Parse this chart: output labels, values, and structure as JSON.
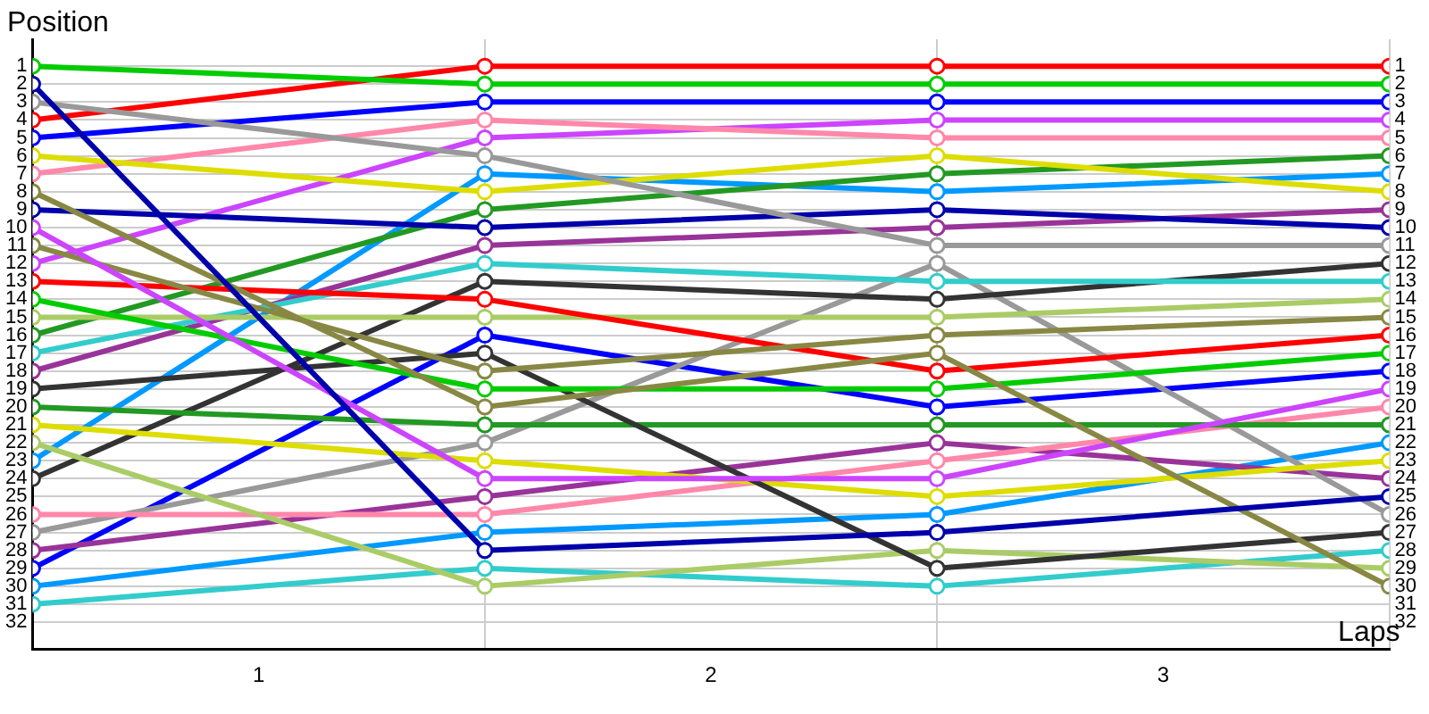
{
  "chart_data": {
    "type": "line",
    "xlabel": "Laps",
    "ylabel": "Position",
    "x": [
      0,
      1,
      2,
      3
    ],
    "xlim": [
      0,
      3
    ],
    "xticks": [
      {
        "value": 0,
        "label": null
      },
      {
        "value": 0.5,
        "label": "1"
      },
      {
        "value": 1,
        "label": null
      },
      {
        "value": 1.5,
        "label": "2"
      },
      {
        "value": 2,
        "label": null
      },
      {
        "value": 2.5,
        "label": "3"
      },
      {
        "value": 3,
        "label": null
      }
    ],
    "ylim": [
      33.5,
      -0.5
    ],
    "yticks": [
      1,
      2,
      3,
      4,
      5,
      6,
      7,
      8,
      9,
      10,
      11,
      12,
      13,
      14,
      15,
      16,
      17,
      18,
      19,
      20,
      21,
      22,
      23,
      24,
      25,
      26,
      27,
      28,
      29,
      30,
      31,
      32
    ],
    "y2lim": [
      33.5,
      -0.5
    ],
    "y2ticks": [
      1,
      2,
      3,
      4,
      5,
      6,
      7,
      8,
      9,
      10,
      11,
      12,
      13,
      14,
      15,
      16,
      17,
      18,
      19,
      20,
      21,
      22,
      23,
      24,
      25,
      26,
      27,
      28,
      29,
      30,
      31,
      32
    ],
    "grid": true,
    "legend": false,
    "marker": "circle",
    "line_style": "solid",
    "series": [
      {
        "color": "#00cc00",
        "values": [
          1,
          2,
          2,
          2
        ]
      },
      {
        "color": "#0000aa",
        "values": [
          2,
          28,
          27,
          25
        ]
      },
      {
        "color": "#999999",
        "values": [
          3,
          6,
          11,
          11
        ]
      },
      {
        "color": "#ff0000",
        "values": [
          4,
          1,
          1,
          1
        ]
      },
      {
        "color": "#0000ff",
        "values": [
          5,
          3,
          3,
          3
        ]
      },
      {
        "color": "#dddd00",
        "values": [
          6,
          8,
          6,
          8
        ]
      },
      {
        "color": "#ff88aa",
        "values": [
          7,
          4,
          5,
          5
        ]
      },
      {
        "color": "#888844",
        "values": [
          8,
          20,
          17,
          30
        ]
      },
      {
        "color": "#0000aa",
        "values": [
          9,
          10,
          9,
          10
        ]
      },
      {
        "color": "#cc44ff",
        "values": [
          10,
          24,
          24,
          19
        ]
      },
      {
        "color": "#888844",
        "values": [
          11,
          18,
          16,
          15
        ]
      },
      {
        "color": "#cc44ff",
        "values": [
          12,
          5,
          4,
          4
        ]
      },
      {
        "color": "#ff0000",
        "values": [
          13,
          14,
          18,
          16
        ]
      },
      {
        "color": "#00cc00",
        "values": [
          14,
          19,
          19,
          17
        ]
      },
      {
        "color": "#aacc66",
        "values": [
          15,
          15,
          15,
          14
        ]
      },
      {
        "color": "#229922",
        "values": [
          16,
          9,
          7,
          6
        ]
      },
      {
        "color": "#33cccc",
        "values": [
          17,
          12,
          13,
          13
        ]
      },
      {
        "color": "#993399",
        "values": [
          18,
          11,
          10,
          9
        ]
      },
      {
        "color": "#333333",
        "values": [
          19,
          17,
          29,
          27
        ]
      },
      {
        "color": "#229922",
        "values": [
          20,
          21,
          21,
          21
        ]
      },
      {
        "color": "#dddd00",
        "values": [
          21,
          23,
          25,
          23
        ]
      },
      {
        "color": "#aacc66",
        "values": [
          22,
          30,
          28,
          29
        ]
      },
      {
        "color": "#0099ff",
        "values": [
          23,
          7,
          8,
          7
        ]
      },
      {
        "color": "#333333",
        "values": [
          24,
          13,
          14,
          12
        ]
      },
      {
        "color": "#ff88aa",
        "values": [
          26,
          26,
          23,
          20
        ]
      },
      {
        "color": "#999999",
        "values": [
          27,
          22,
          12,
          26
        ]
      },
      {
        "color": "#993399",
        "values": [
          28,
          25,
          22,
          24
        ]
      },
      {
        "color": "#0000ff",
        "values": [
          29,
          16,
          20,
          18
        ]
      },
      {
        "color": "#0099ff",
        "values": [
          30,
          27,
          26,
          22
        ]
      },
      {
        "color": "#33cccc",
        "values": [
          31,
          29,
          30,
          28
        ]
      }
    ]
  }
}
